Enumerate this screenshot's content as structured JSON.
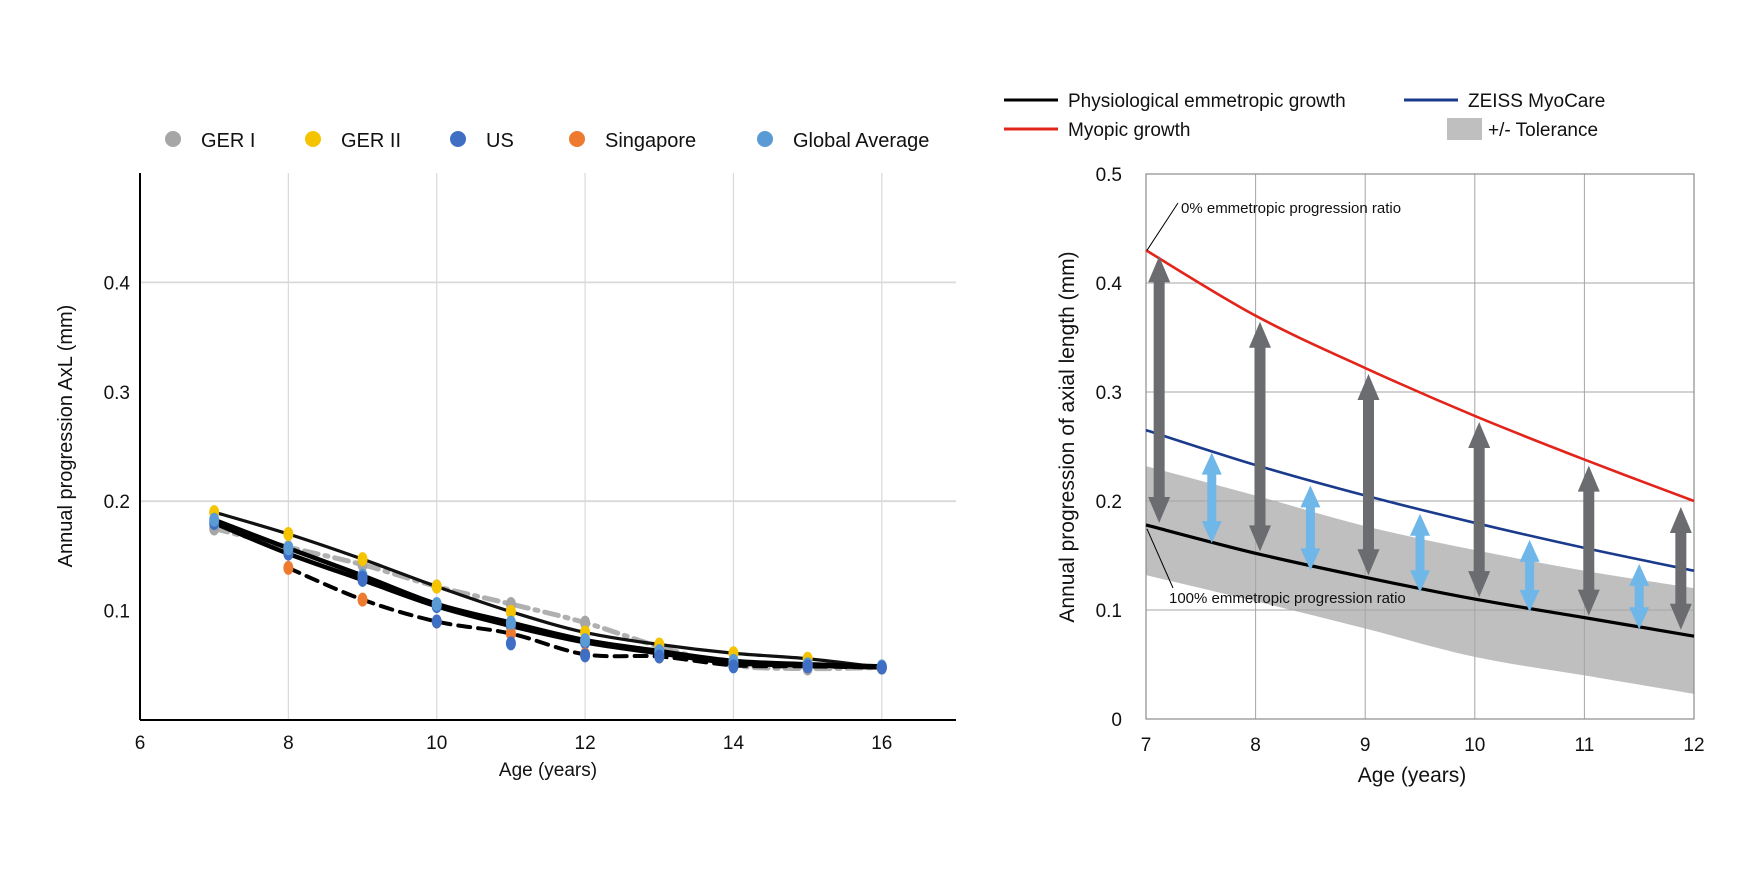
{
  "chart_data": [
    {
      "type": "line",
      "xlabel": "Age (years)",
      "ylabel": "Annual progression AxL (mm)",
      "xlim": [
        6,
        17
      ],
      "ylim": [
        0,
        0.5
      ],
      "xticks": [
        "6",
        "8",
        "10",
        "12",
        "14",
        "16"
      ],
      "yticks": [
        "0.1",
        "0.2",
        "0.3",
        "0.4"
      ],
      "grid": "vertical at x ticks, horizontal at 0.2 and 0.4",
      "legend_position": "top",
      "legend": [
        {
          "name": "GER I",
          "color": "#a6a6a6"
        },
        {
          "name": "GER II",
          "color": "#f5c400"
        },
        {
          "name": "US",
          "color": "#3f6fc4"
        },
        {
          "name": "Singapore",
          "color": "#ee7a30"
        },
        {
          "name": "Global Average",
          "color": "#5b9bd5"
        }
      ],
      "series": [
        {
          "name": "GER I",
          "color": "#a6a6a6",
          "line_style": "dash-dot",
          "x": [
            7,
            8,
            9,
            10,
            11,
            12,
            13,
            14,
            15,
            16
          ],
          "y": [
            0.175,
            0.158,
            0.142,
            0.122,
            0.106,
            0.089,
            0.067,
            0.05,
            0.047,
            0.048
          ]
        },
        {
          "name": "GER II",
          "color": "#f5c400",
          "line_style": "solid",
          "x": [
            7,
            8,
            9,
            10,
            11,
            12,
            13,
            14,
            15,
            16
          ],
          "y": [
            0.19,
            0.17,
            0.147,
            0.122,
            0.099,
            0.08,
            0.069,
            0.061,
            0.056,
            0.048
          ]
        },
        {
          "name": "US",
          "color": "#3f6fc4",
          "line_style": "solid-thick",
          "x": [
            7,
            8,
            9,
            10,
            11,
            12,
            13,
            14,
            15,
            16
          ],
          "y": [
            0.18,
            0.152,
            0.128,
            0.104,
            0.086,
            0.071,
            0.061,
            0.052,
            0.05,
            0.048
          ]
        },
        {
          "name": "Singapore",
          "color": "#ee7a30",
          "line_style": "dashed",
          "x": [
            8,
            9,
            10,
            11,
            12,
            13,
            14,
            15,
            16
          ],
          "y": [
            0.139,
            0.11,
            0.09,
            0.079,
            0.06,
            0.058,
            0.05,
            0.049,
            0.048
          ]
        },
        {
          "name": "Global Average",
          "color": "#5b9bd5",
          "line_style": "solid-thick",
          "x": [
            7,
            8,
            9,
            10,
            11,
            12,
            13,
            14,
            15,
            16
          ],
          "y": [
            0.183,
            0.157,
            0.132,
            0.106,
            0.089,
            0.073,
            0.063,
            0.054,
            0.051,
            0.049
          ]
        },
        {
          "name": "",
          "color": "#3f6fc4",
          "line_style": "markers",
          "x": [
            9,
            10,
            11,
            12,
            13,
            14,
            15,
            16
          ],
          "y": [
            0.13,
            0.09,
            0.07,
            0.059,
            0.058,
            0.049,
            0.049,
            0.048
          ]
        }
      ]
    },
    {
      "type": "line",
      "xlabel": "Age (years)",
      "ylabel": "Annual progression of axial length (mm)",
      "xlim": [
        7,
        12
      ],
      "ylim": [
        0,
        0.5
      ],
      "xticks": [
        "7",
        "8",
        "9",
        "10",
        "11",
        "12"
      ],
      "yticks": [
        "0",
        "0.1",
        "0.2",
        "0.3",
        "0.4",
        "0.5"
      ],
      "grid": "on",
      "legend_position": "top",
      "legend": [
        {
          "name": "Physiological emmetropic growth",
          "color": "#000000",
          "kind": "line"
        },
        {
          "name": "ZEISS MyoCare",
          "color": "#1a3a8c",
          "kind": "line"
        },
        {
          "name": "Myopic growth",
          "color": "#e3241b",
          "kind": "line"
        },
        {
          "name": "+/- Tolerance",
          "color": "#bfbfbf",
          "kind": "box"
        }
      ],
      "series": [
        {
          "name": "Myopic growth",
          "color": "#e3241b",
          "x": [
            7,
            8,
            9,
            10,
            11,
            12
          ],
          "y": [
            0.43,
            0.37,
            0.322,
            0.278,
            0.238,
            0.2
          ]
        },
        {
          "name": "ZEISS MyoCare",
          "color": "#1a3a8c",
          "x": [
            7,
            8,
            9,
            10,
            11,
            12
          ],
          "y": [
            0.265,
            0.233,
            0.205,
            0.18,
            0.157,
            0.136
          ]
        },
        {
          "name": "Physiological emmetropic growth",
          "color": "#000000",
          "x": [
            7,
            8,
            9,
            10,
            11,
            12
          ],
          "y": [
            0.178,
            0.152,
            0.13,
            0.11,
            0.093,
            0.076
          ]
        }
      ],
      "tolerance_band": {
        "name": "+/- Tolerance",
        "color": "#bfbfbf",
        "x": [
          7,
          8,
          9,
          10,
          11,
          12
        ],
        "upper": [
          0.232,
          0.205,
          0.177,
          0.155,
          0.136,
          0.12
        ],
        "lower": [
          0.132,
          0.108,
          0.083,
          0.057,
          0.04,
          0.023
        ]
      },
      "arrows": {
        "gray": {
          "color": "#6b6c70",
          "x": [
            7.12,
            8.04,
            9.03,
            10.04,
            11.04,
            11.88
          ],
          "from": [
            0.178,
            0.152,
            0.13,
            0.11,
            0.093,
            0.08
          ],
          "to": [
            0.43,
            0.37,
            0.322,
            0.278,
            0.238,
            0.2
          ]
        },
        "blue": {
          "color": "#6fb7e8",
          "x": [
            7.6,
            8.5,
            9.5,
            10.5,
            11.5
          ],
          "from": [
            0.165,
            0.14,
            0.12,
            0.102,
            0.086
          ],
          "to": [
            0.248,
            0.218,
            0.192,
            0.168,
            0.146
          ]
        }
      },
      "annotations": [
        {
          "text": "0% emmetropic progression ratio",
          "x": 7,
          "y": 0.43
        },
        {
          "text": "100% emmetropic progression ratio",
          "x": 7,
          "y": 0.178
        }
      ]
    }
  ]
}
